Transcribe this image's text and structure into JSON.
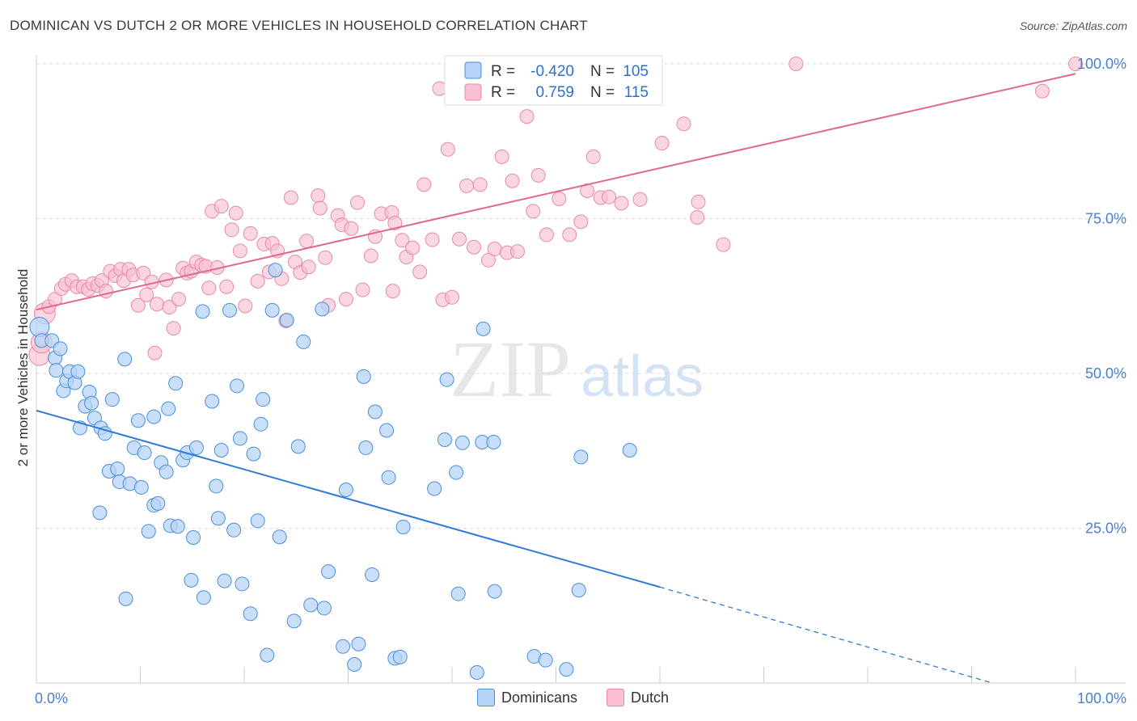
{
  "title": "DOMINICAN VS DUTCH 2 OR MORE VEHICLES IN HOUSEHOLD CORRELATION CHART",
  "source": "Source: ZipAtlas.com",
  "watermark": {
    "zip": "ZIP",
    "atlas": "atlas"
  },
  "colors": {
    "blue_fill": "#b7d3f5",
    "blue_stroke": "#4a90d9",
    "blue_line": "#2f7ad6",
    "pink_fill": "#f8c0d0",
    "pink_stroke": "#e88aa8",
    "pink_line": "#e06890",
    "axis_label": "#4a7fcf",
    "grid": "#dddddd"
  },
  "legend_box": {
    "rows": [
      {
        "r_label": "R =",
        "r_value": "-0.420",
        "n_label": "N =",
        "n_value": "105"
      },
      {
        "r_label": "R =",
        "r_value": "0.759",
        "n_label": "N =",
        "n_value": "115"
      }
    ]
  },
  "legend_bottom": [
    {
      "label": "Dominicans",
      "color": "#b7d3f5",
      "stroke": "#4a90d9"
    },
    {
      "label": "Dutch",
      "color": "#f8c0d0",
      "stroke": "#e88aa8"
    }
  ],
  "chart_data": {
    "type": "scatter",
    "title": "DOMINICAN VS DUTCH 2 OR MORE VEHICLES IN HOUSEHOLD CORRELATION CHART",
    "xlabel": "",
    "ylabel": "2 or more Vehicles in Household",
    "xlim": [
      0,
      100
    ],
    "ylim": [
      0,
      100
    ],
    "x_ticks": [
      "0.0%",
      "100.0%"
    ],
    "y_ticks": [
      "25.0%",
      "50.0%",
      "75.0%",
      "100.0%"
    ],
    "y_tick_values": [
      25,
      50,
      75,
      100
    ],
    "grid": true,
    "legend_position": "top-center",
    "series": [
      {
        "name": "Dominicans",
        "r": -0.42,
        "n": 105,
        "trend": {
          "x0": 0,
          "y0": 44.0,
          "x1": 60,
          "y1": 15.5,
          "dash_to_x": 92,
          "dash_to_y": 0
        },
        "points": [
          [
            0.3,
            57.5
          ],
          [
            0.5,
            55.3
          ],
          [
            1.5,
            55.3
          ],
          [
            1.8,
            52.5
          ],
          [
            1.9,
            50.5
          ],
          [
            2.3,
            54
          ],
          [
            2.6,
            47.2
          ],
          [
            2.9,
            48.8
          ],
          [
            3.2,
            50.3
          ],
          [
            3.7,
            48.5
          ],
          [
            4.0,
            50.3
          ],
          [
            4.2,
            41.2
          ],
          [
            4.7,
            44.7
          ],
          [
            5.1,
            47
          ],
          [
            5.3,
            45.2
          ],
          [
            5.6,
            42.8
          ],
          [
            6.1,
            27.5
          ],
          [
            6.2,
            41.2
          ],
          [
            6.6,
            40.3
          ],
          [
            7.0,
            34.2
          ],
          [
            7.3,
            45.8
          ],
          [
            7.8,
            34.6
          ],
          [
            8.0,
            32.5
          ],
          [
            8.5,
            52.3
          ],
          [
            8.6,
            13.6
          ],
          [
            9.0,
            32.2
          ],
          [
            9.4,
            38
          ],
          [
            9.8,
            42.4
          ],
          [
            10.1,
            31.6
          ],
          [
            10.4,
            37.2
          ],
          [
            10.8,
            24.5
          ],
          [
            11.3,
            43
          ],
          [
            11.3,
            28.7
          ],
          [
            11.7,
            29
          ],
          [
            12.0,
            35.6
          ],
          [
            12.5,
            34.1
          ],
          [
            12.7,
            44.3
          ],
          [
            12.9,
            25.4
          ],
          [
            13.4,
            48.4
          ],
          [
            13.6,
            25.3
          ],
          [
            14.1,
            36
          ],
          [
            14.5,
            37.2
          ],
          [
            14.9,
            16.6
          ],
          [
            15.1,
            23.5
          ],
          [
            15.4,
            38
          ],
          [
            16.0,
            60
          ],
          [
            16.1,
            13.8
          ],
          [
            16.9,
            45.5
          ],
          [
            17.3,
            31.8
          ],
          [
            17.5,
            26.6
          ],
          [
            17.8,
            37.6
          ],
          [
            18.1,
            16.5
          ],
          [
            18.6,
            60.2
          ],
          [
            19.0,
            24.7
          ],
          [
            19.3,
            48
          ],
          [
            19.6,
            39.5
          ],
          [
            19.8,
            16
          ],
          [
            20.6,
            11.2
          ],
          [
            20.9,
            37
          ],
          [
            21.3,
            26.2
          ],
          [
            21.6,
            41.8
          ],
          [
            21.8,
            45.8
          ],
          [
            22.2,
            4.5
          ],
          [
            22.7,
            60.2
          ],
          [
            23.0,
            66.7
          ],
          [
            23.4,
            23.6
          ],
          [
            24.1,
            58.6
          ],
          [
            24.8,
            10
          ],
          [
            25.2,
            38.2
          ],
          [
            25.7,
            55.1
          ],
          [
            26.4,
            12.6
          ],
          [
            27.5,
            60.4
          ],
          [
            27.7,
            12.1
          ],
          [
            28.1,
            18
          ],
          [
            29.5,
            5.9
          ],
          [
            29.8,
            31.2
          ],
          [
            30.6,
            3
          ],
          [
            31.0,
            6.3
          ],
          [
            31.5,
            49.5
          ],
          [
            31.7,
            38
          ],
          [
            32.3,
            17.5
          ],
          [
            32.6,
            43.8
          ],
          [
            33.7,
            40.8
          ],
          [
            33.9,
            33.2
          ],
          [
            34.5,
            4
          ],
          [
            35.0,
            4.2
          ],
          [
            35.3,
            25.2
          ],
          [
            38.3,
            31.4
          ],
          [
            39.3,
            39.3
          ],
          [
            39.5,
            49
          ],
          [
            40.4,
            34
          ],
          [
            40.6,
            14.4
          ],
          [
            41.0,
            38.8
          ],
          [
            42.4,
            1.7
          ],
          [
            43.0,
            57.2
          ],
          [
            42.9,
            38.9
          ],
          [
            44.0,
            38.9
          ],
          [
            44.1,
            14.8
          ],
          [
            47.9,
            4.3
          ],
          [
            49.0,
            3.7
          ],
          [
            51.0,
            2.2
          ],
          [
            52.2,
            15
          ],
          [
            52.4,
            36.5
          ],
          [
            57.1,
            37.6
          ]
        ]
      },
      {
        "name": "Dutch",
        "r": 0.759,
        "n": 115,
        "trend": {
          "x0": 0,
          "y0": 60.3,
          "x1": 100,
          "y1": 98.4
        },
        "points": [
          [
            0.3,
            53
          ],
          [
            0.5,
            55
          ],
          [
            0.8,
            59.7
          ],
          [
            1.2,
            60.8
          ],
          [
            1.8,
            62
          ],
          [
            2.4,
            63.7
          ],
          [
            2.8,
            64.4
          ],
          [
            3.4,
            65
          ],
          [
            3.9,
            64
          ],
          [
            4.5,
            64
          ],
          [
            5.0,
            63.6
          ],
          [
            5.4,
            64.5
          ],
          [
            5.9,
            64.2
          ],
          [
            6.3,
            65
          ],
          [
            6.7,
            63.3
          ],
          [
            7.1,
            66.5
          ],
          [
            7.6,
            65.8
          ],
          [
            8.1,
            66.8
          ],
          [
            8.4,
            65
          ],
          [
            8.9,
            66.8
          ],
          [
            9.3,
            65.9
          ],
          [
            9.8,
            61
          ],
          [
            10.3,
            66.2
          ],
          [
            10.6,
            62.7
          ],
          [
            11.1,
            64.8
          ],
          [
            11.4,
            53.3
          ],
          [
            11.6,
            61.2
          ],
          [
            12.5,
            65.1
          ],
          [
            12.8,
            60.7
          ],
          [
            13.2,
            57.3
          ],
          [
            13.7,
            62
          ],
          [
            14.1,
            67
          ],
          [
            14.5,
            66.2
          ],
          [
            14.9,
            66.5
          ],
          [
            15.4,
            68
          ],
          [
            15.9,
            67.5
          ],
          [
            16.3,
            67.3
          ],
          [
            16.6,
            63.8
          ],
          [
            16.9,
            76.2
          ],
          [
            17.4,
            67.1
          ],
          [
            17.8,
            77
          ],
          [
            18.3,
            64
          ],
          [
            18.8,
            73.2
          ],
          [
            19.2,
            75.9
          ],
          [
            19.6,
            69.8
          ],
          [
            20.1,
            60.9
          ],
          [
            20.6,
            72.6
          ],
          [
            21.3,
            64.9
          ],
          [
            21.9,
            70.9
          ],
          [
            22.4,
            66.4
          ],
          [
            22.7,
            71
          ],
          [
            23.2,
            69.8
          ],
          [
            23.6,
            65.3
          ],
          [
            24.0,
            58.5
          ],
          [
            24.5,
            78.4
          ],
          [
            24.9,
            68
          ],
          [
            25.4,
            66.3
          ],
          [
            26.0,
            71.4
          ],
          [
            26.2,
            67.2
          ],
          [
            27.1,
            78.7
          ],
          [
            27.3,
            76.7
          ],
          [
            27.8,
            68.7
          ],
          [
            28.1,
            61
          ],
          [
            29.0,
            75.5
          ],
          [
            29.4,
            74
          ],
          [
            29.8,
            62
          ],
          [
            30.3,
            73.4
          ],
          [
            30.9,
            77.6
          ],
          [
            31.4,
            63.5
          ],
          [
            32.2,
            69
          ],
          [
            32.6,
            72.1
          ],
          [
            33.2,
            75.8
          ],
          [
            34.2,
            76
          ],
          [
            34.3,
            63.3
          ],
          [
            34.5,
            74.3
          ],
          [
            35.2,
            71.5
          ],
          [
            35.6,
            68.8
          ],
          [
            36.2,
            70.3
          ],
          [
            36.9,
            66.4
          ],
          [
            37.3,
            80.5
          ],
          [
            38.1,
            71.6
          ],
          [
            38.8,
            96
          ],
          [
            39.1,
            61.9
          ],
          [
            39.6,
            86.2
          ],
          [
            40.0,
            62.3
          ],
          [
            40.7,
            71.7
          ],
          [
            41.4,
            80.3
          ],
          [
            42.1,
            70.4
          ],
          [
            42.7,
            80.5
          ],
          [
            43.5,
            68.3
          ],
          [
            44.1,
            70.1
          ],
          [
            44.8,
            85
          ],
          [
            45.3,
            69.5
          ],
          [
            45.8,
            81.1
          ],
          [
            46.3,
            69.7
          ],
          [
            47.2,
            91.5
          ],
          [
            47.8,
            76.2
          ],
          [
            48.3,
            82
          ],
          [
            49.1,
            72.4
          ],
          [
            50.3,
            78.2
          ],
          [
            51.3,
            72.4
          ],
          [
            52.4,
            74.5
          ],
          [
            53.0,
            79.5
          ],
          [
            53.6,
            85
          ],
          [
            54.3,
            78.4
          ],
          [
            55.1,
            78.5
          ],
          [
            56.3,
            77.5
          ],
          [
            58.1,
            78.1
          ],
          [
            59.0,
            96.2
          ],
          [
            60.2,
            87.2
          ],
          [
            62.3,
            90.3
          ],
          [
            63.6,
            75.2
          ],
          [
            63.7,
            77.7
          ],
          [
            66.1,
            70.8
          ],
          [
            73.1,
            100
          ],
          [
            96.8,
            95.6
          ],
          [
            100,
            100
          ]
        ]
      }
    ]
  }
}
